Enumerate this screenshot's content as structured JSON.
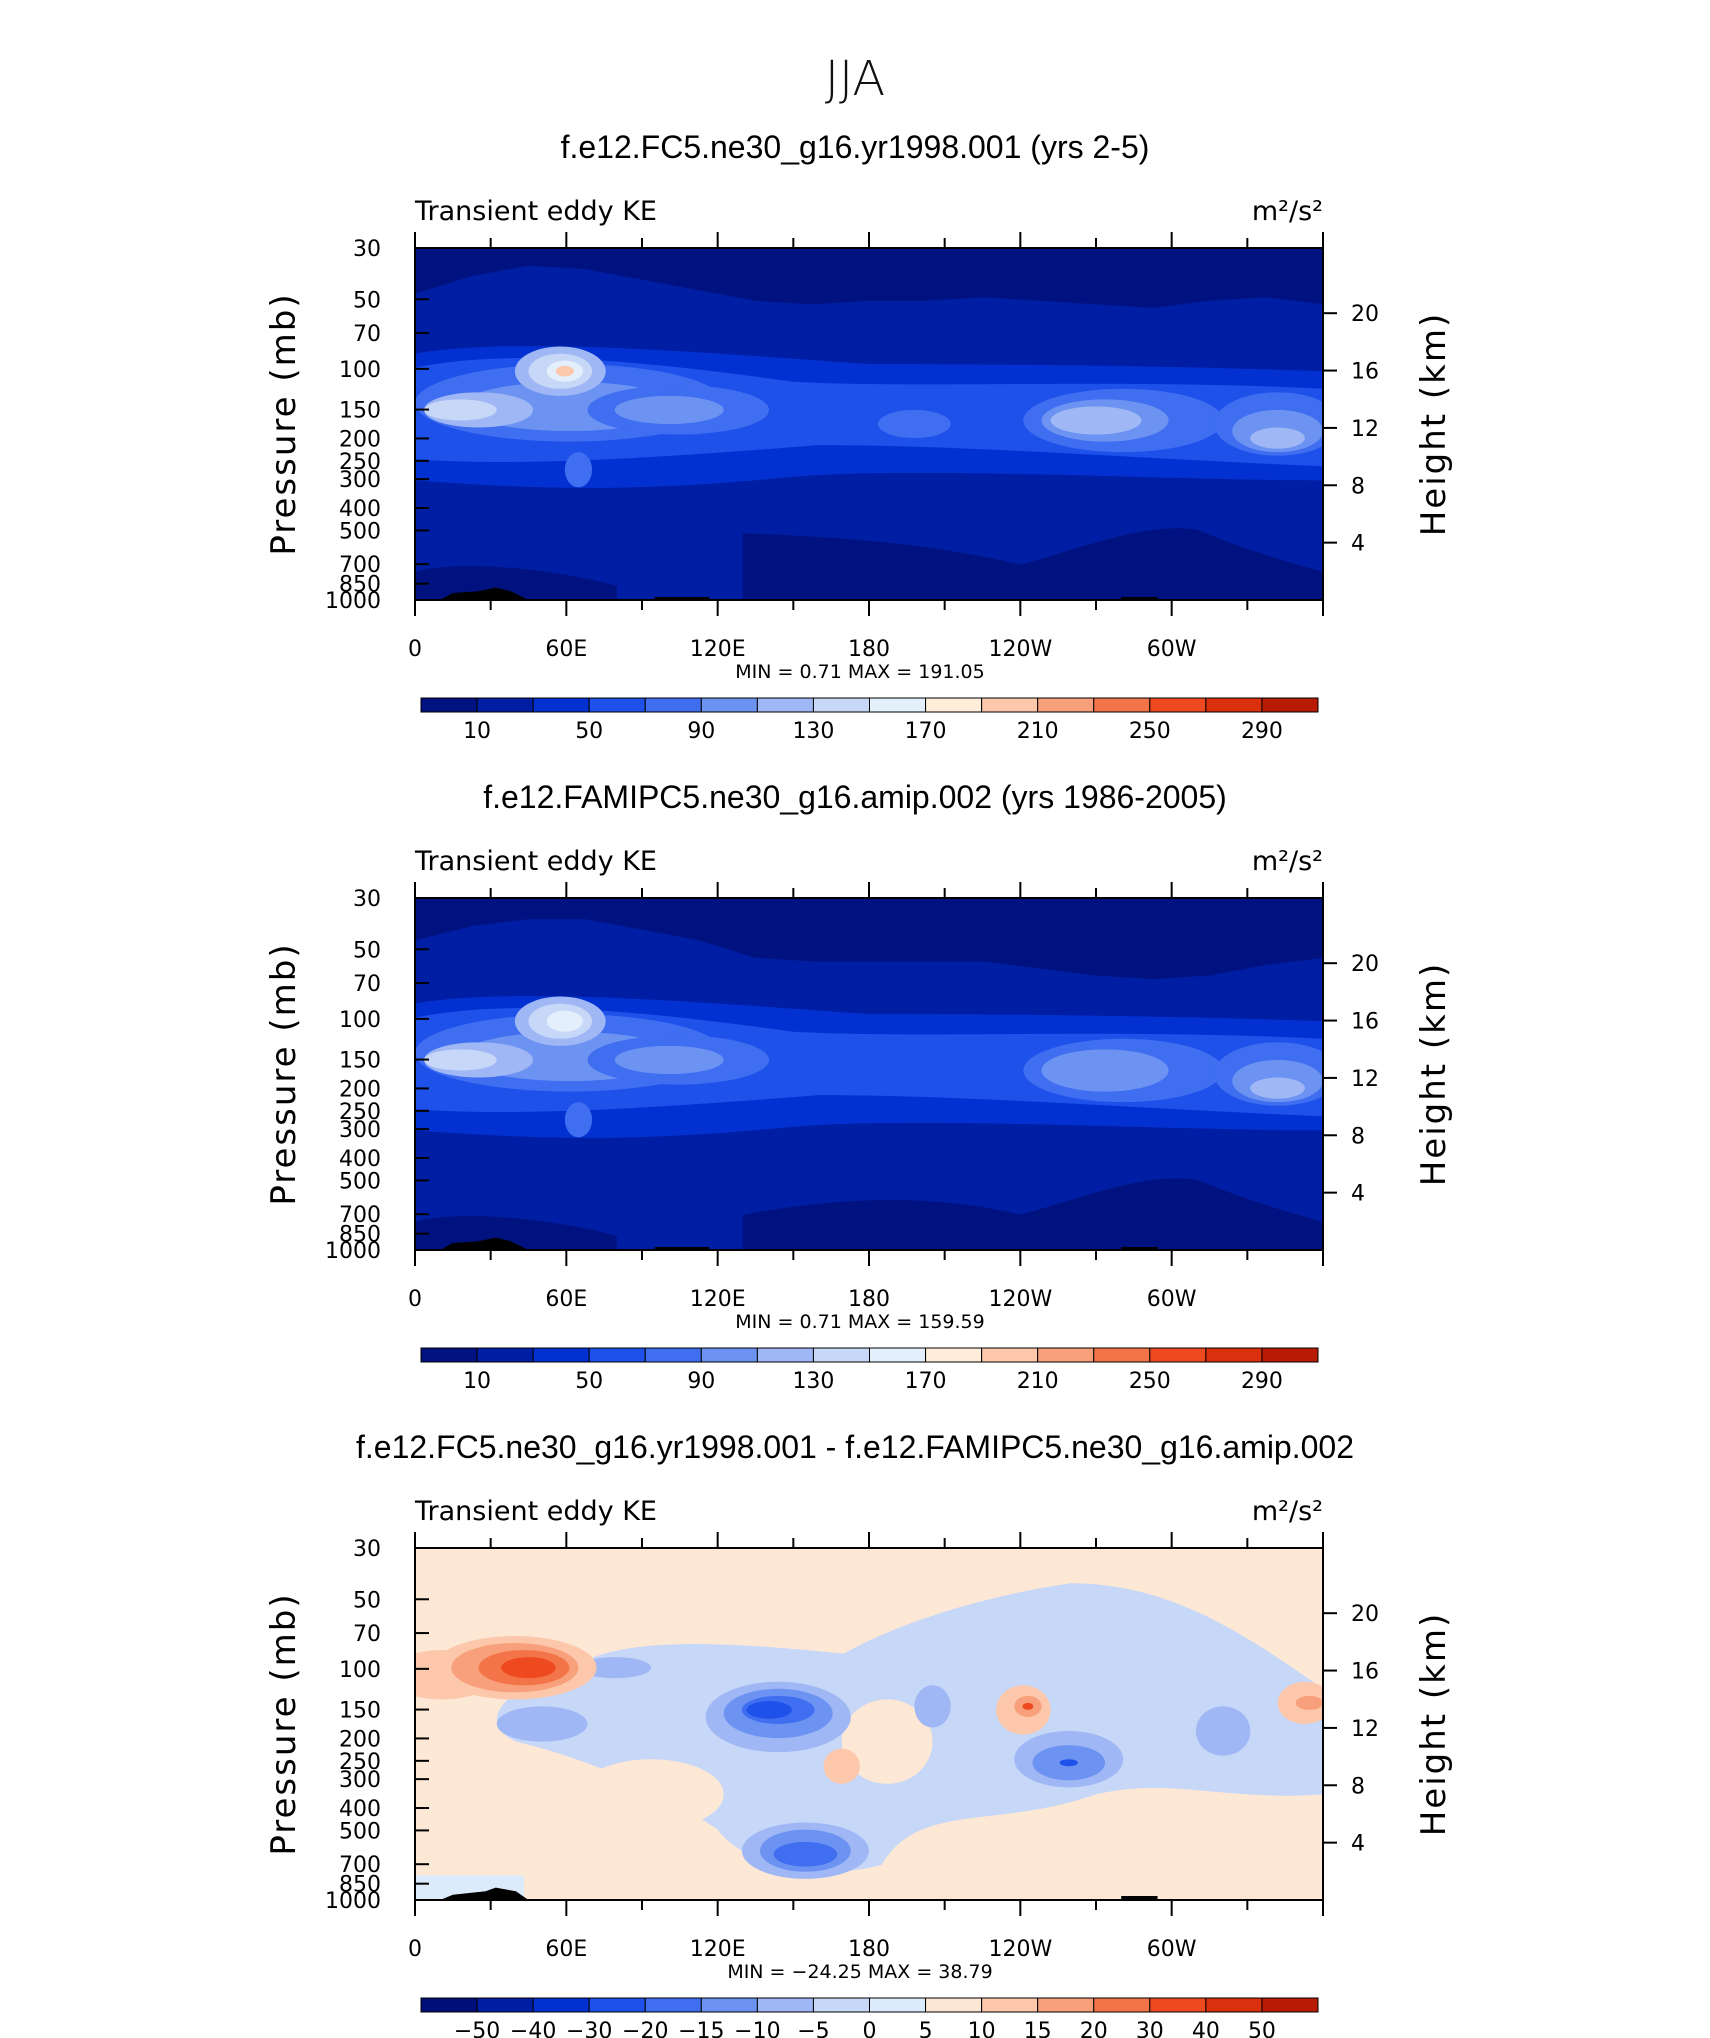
{
  "figure_title": "JJA",
  "colors": {
    "abs_palette": [
      "#00127f",
      "#001ea3",
      "#0331d1",
      "#1e50ea",
      "#3f6ef0",
      "#6d93f2",
      "#9fb7f4",
      "#c7d7f7",
      "#e3effb",
      "#ffecd9",
      "#fcc7aa",
      "#f8a07b",
      "#f47449",
      "#ef4a1f",
      "#da300d",
      "#b71a05",
      "#8a0000"
    ],
    "diff_palette": [
      "#000e7a",
      "#001ea3",
      "#0331d1",
      "#1e50ea",
      "#3f6ef0",
      "#6d93f2",
      "#9fb7f4",
      "#c7d7f7",
      "#dcebfb",
      "#fde8d6",
      "#fcc7aa",
      "#f8a07b",
      "#f47449",
      "#ef4a1f",
      "#da300d",
      "#b71a05",
      "#8a0000"
    ],
    "topography": "#000000"
  },
  "chart_data": [
    {
      "type": "heatmap",
      "title": "f.e12.FC5.ne30_g16.yr1998.001 (yrs 2-5)",
      "left_label": "Transient eddy KE",
      "units": "m²/s²",
      "ylabel": "Pressure (mb)",
      "ylabel_right": "Height (km)",
      "yticks": [
        "30",
        "50",
        "70",
        "100",
        "150",
        "200",
        "250",
        "300",
        "400",
        "500",
        "700",
        "850",
        "1000"
      ],
      "yticks_right": [
        "20",
        "16",
        "12",
        "8",
        "4"
      ],
      "xticks": [
        "0",
        "60E",
        "120E",
        "180",
        "120W",
        "60W"
      ],
      "min_max": "MIN =    0.71   MAX =  191.05",
      "colorbar_labels": [
        "10",
        "50",
        "90",
        "130",
        "170",
        "210",
        "250",
        "290"
      ],
      "levels": [
        10,
        30,
        50,
        70,
        90,
        110,
        130,
        150,
        170,
        190,
        210,
        230,
        250,
        270,
        290
      ],
      "ylim": [
        1000,
        30
      ]
    },
    {
      "type": "heatmap",
      "title": "f.e12.FAMIPC5.ne30_g16.amip.002 (yrs 1986-2005)",
      "left_label": "Transient eddy KE",
      "units": "m²/s²",
      "ylabel": "Pressure (mb)",
      "ylabel_right": "Height (km)",
      "yticks": [
        "30",
        "50",
        "70",
        "100",
        "150",
        "200",
        "250",
        "300",
        "400",
        "500",
        "700",
        "850",
        "1000"
      ],
      "yticks_right": [
        "20",
        "16",
        "12",
        "8",
        "4"
      ],
      "xticks": [
        "0",
        "60E",
        "120E",
        "180",
        "120W",
        "60W"
      ],
      "min_max": "MIN =    0.71   MAX =  159.59",
      "colorbar_labels": [
        "10",
        "50",
        "90",
        "130",
        "170",
        "210",
        "250",
        "290"
      ],
      "levels": [
        10,
        30,
        50,
        70,
        90,
        110,
        130,
        150,
        170,
        190,
        210,
        230,
        250,
        270,
        290
      ],
      "ylim": [
        1000,
        30
      ]
    },
    {
      "type": "heatmap",
      "title": "f.e12.FC5.ne30_g16.yr1998.001 - f.e12.FAMIPC5.ne30_g16.amip.002",
      "left_label": "Transient eddy KE",
      "units": "m²/s²",
      "ylabel": "Pressure (mb)",
      "ylabel_right": "Height (km)",
      "yticks": [
        "30",
        "50",
        "70",
        "100",
        "150",
        "200",
        "250",
        "300",
        "400",
        "500",
        "700",
        "850",
        "1000"
      ],
      "yticks_right": [
        "20",
        "16",
        "12",
        "8",
        "4"
      ],
      "xticks": [
        "0",
        "60E",
        "120E",
        "180",
        "120W",
        "60W"
      ],
      "min_max": "MIN =  −24.25   MAX =   38.79",
      "colorbar_labels": [
        "−50",
        "−40",
        "−30",
        "−20",
        "−15",
        "−10",
        "−5",
        "0",
        "5",
        "10",
        "15",
        "20",
        "30",
        "40",
        "50"
      ],
      "levels": [
        -50,
        -40,
        -30,
        -20,
        -15,
        -10,
        -5,
        0,
        5,
        10,
        15,
        20,
        30,
        40,
        50
      ],
      "ylim": [
        1000,
        30
      ]
    }
  ]
}
